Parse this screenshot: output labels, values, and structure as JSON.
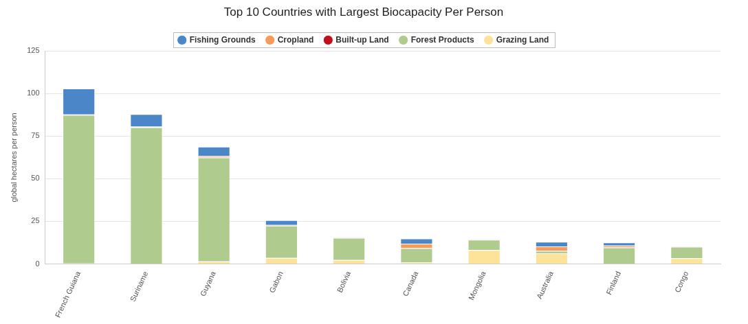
{
  "chart_data": {
    "type": "bar",
    "title": "Top 10 Countries with Largest Biocapacity Per Person",
    "ylabel": "global hectares per person",
    "categories": [
      "French Guiana",
      "Suriname",
      "Guyana",
      "Gabon",
      "Bolivia",
      "Canada",
      "Mongolia",
      "Australia",
      "Finland",
      "Congo"
    ],
    "series": [
      {
        "name": "Fishing Grounds",
        "color": "#4a86c8",
        "values": [
          15.2,
          7.4,
          5.4,
          2.8,
          0.05,
          3.0,
          0.05,
          2.7,
          1.8,
          0.05
        ]
      },
      {
        "name": "Cropland",
        "color": "#f79a5a",
        "values": [
          0.2,
          0.3,
          0.8,
          0.3,
          0.2,
          2.5,
          0.1,
          2.5,
          0.9,
          0.1
        ]
      },
      {
        "name": "Built-up Land",
        "color": "#c0101e",
        "values": [
          0.1,
          0.1,
          0.1,
          0.1,
          0.05,
          0.1,
          0.05,
          0.1,
          0.2,
          0.05
        ]
      },
      {
        "name": "Forest Products",
        "color": "#b0cb8e",
        "values": [
          87.2,
          80.0,
          61.0,
          19.0,
          13.0,
          8.5,
          6.0,
          1.5,
          9.5,
          6.8
        ]
      },
      {
        "name": "Grazing Land",
        "color": "#fde39a",
        "values": [
          0.3,
          0.2,
          1.5,
          3.5,
          2.3,
          0.8,
          8.2,
          6.2,
          0.2,
          3.3
        ]
      }
    ],
    "stacked": true,
    "legend": "top",
    "grid": true,
    "ylim": [
      0,
      125
    ],
    "yticks": [
      0,
      25,
      50,
      75,
      100,
      125
    ]
  }
}
